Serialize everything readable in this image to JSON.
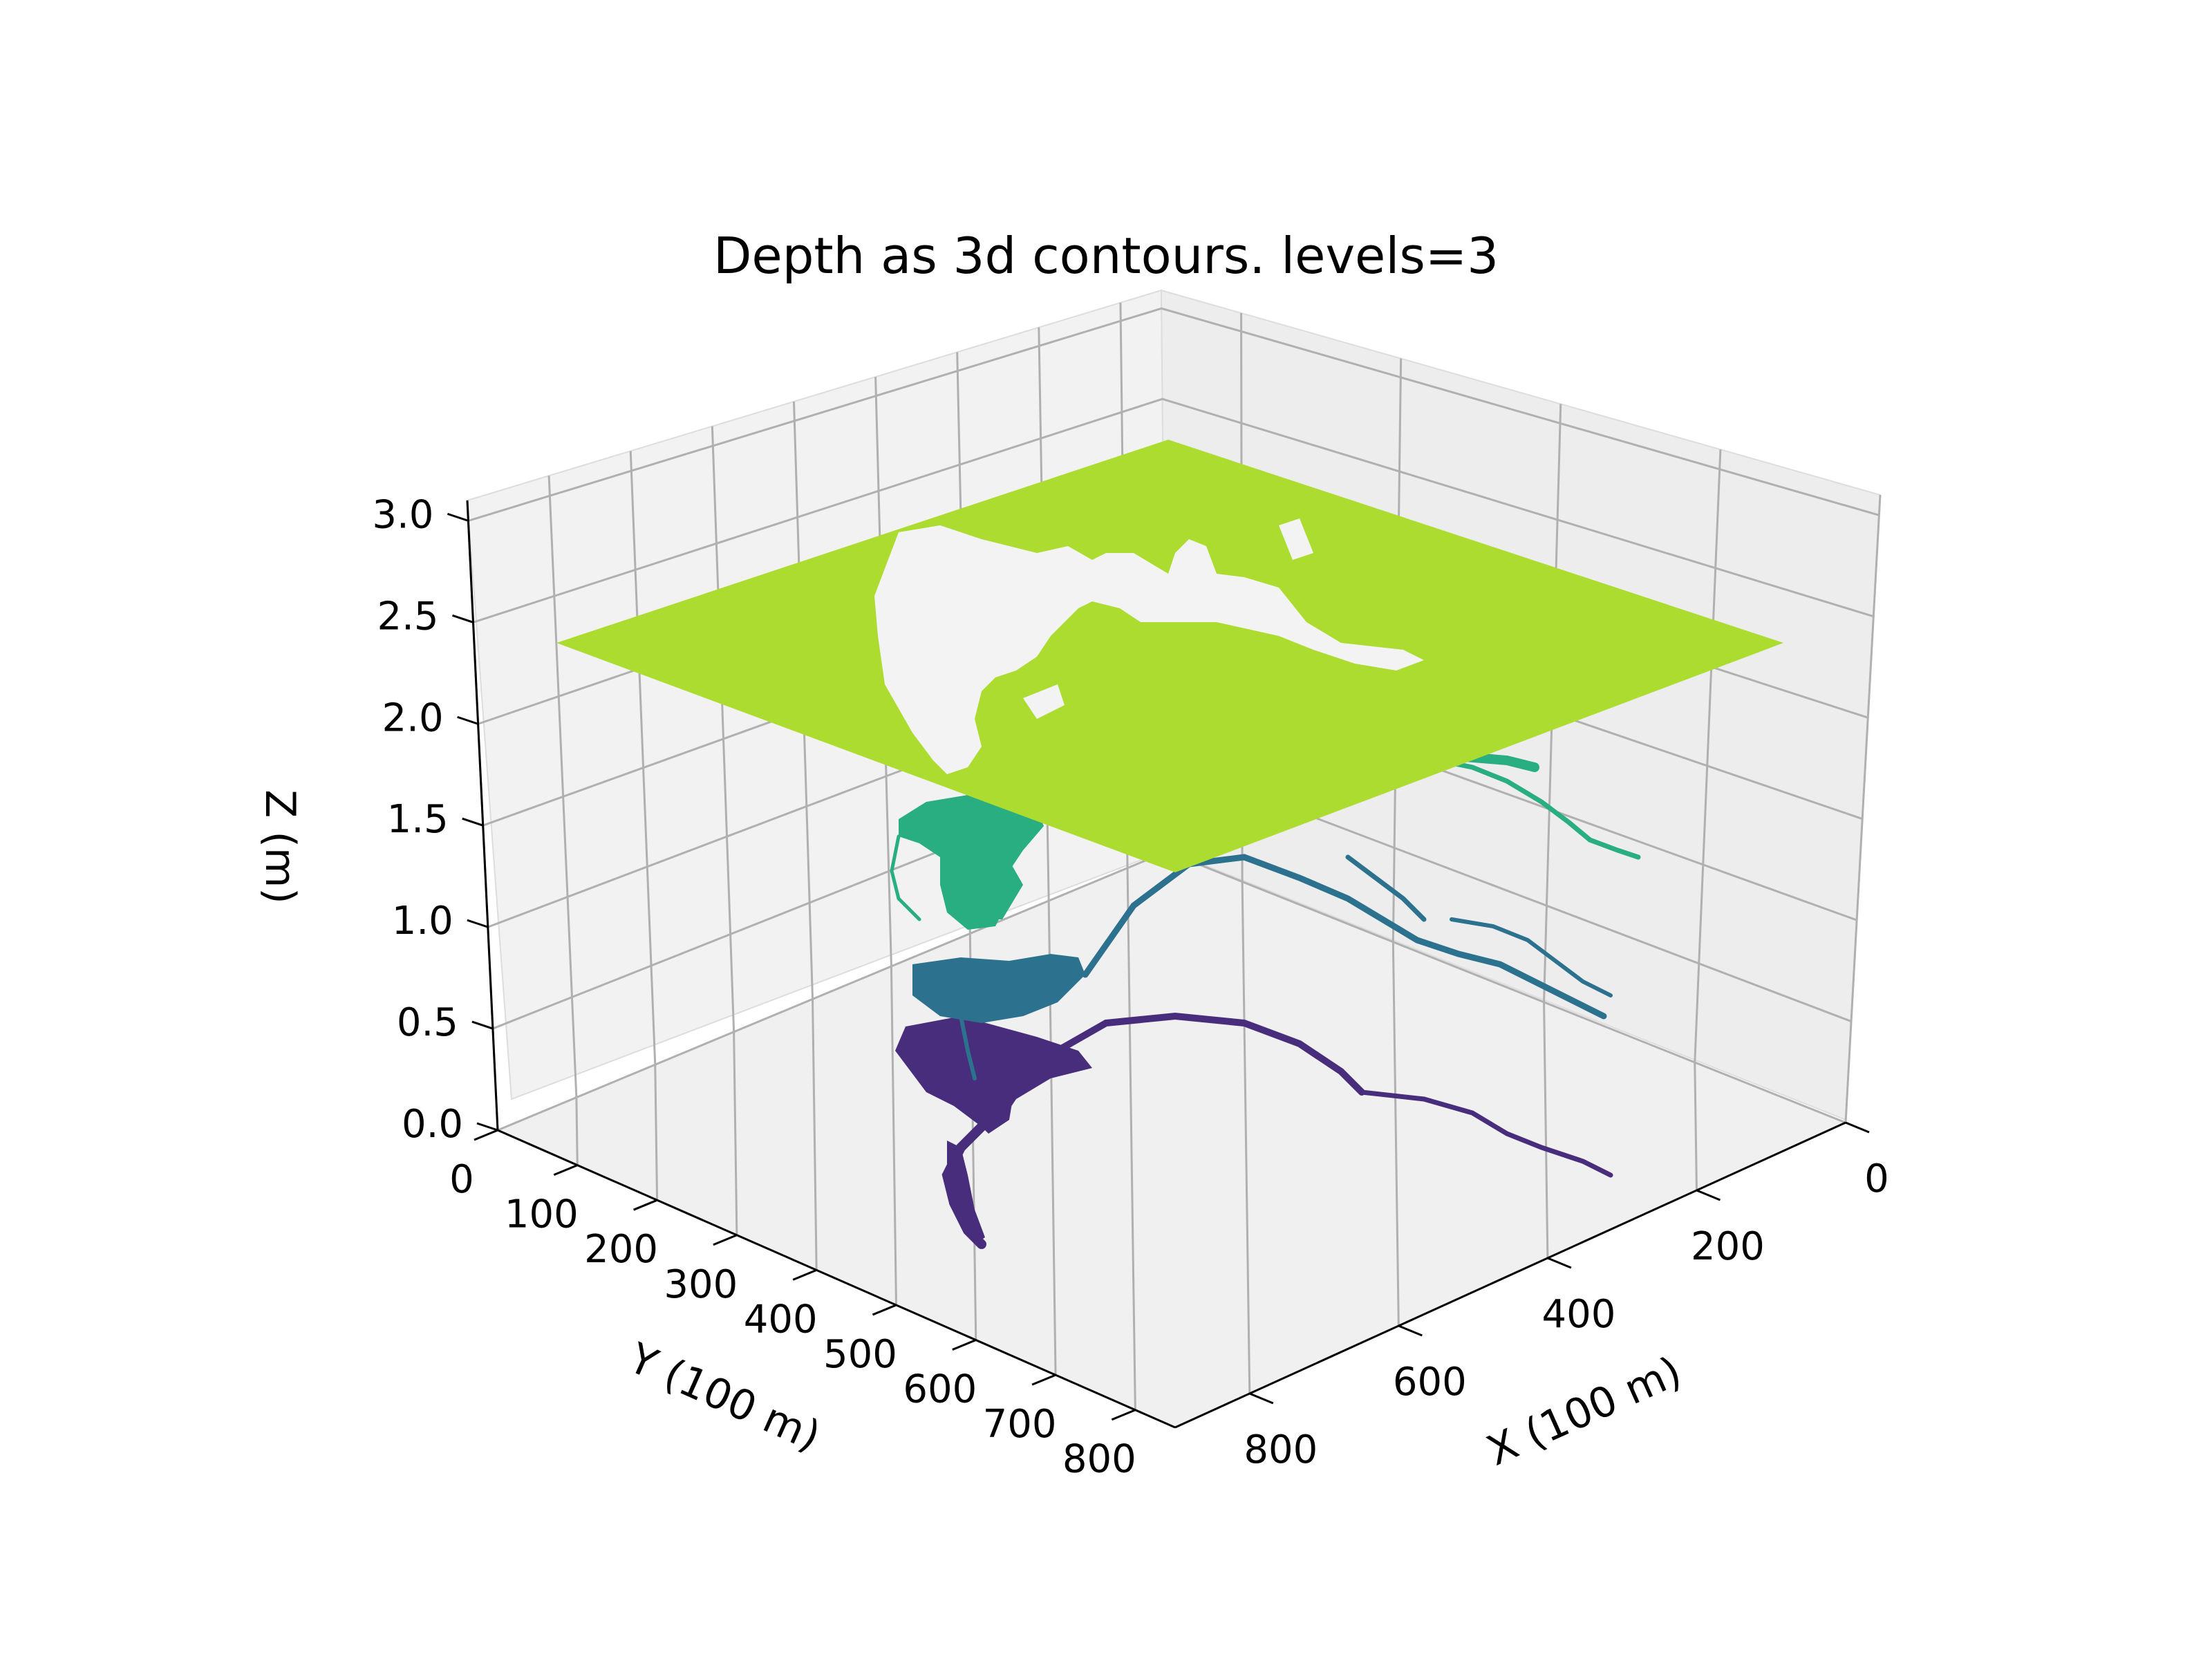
{
  "chart_data": {
    "type": "3d-contour",
    "title": "Depth as 3d contours. levels=3",
    "xlabel": "X (100 m)",
    "ylabel": "Y (100 m)",
    "zlabel": "Z (m)",
    "x_ticks": [
      "0",
      "200",
      "400",
      "600",
      "800"
    ],
    "y_ticks": [
      "0",
      "100",
      "200",
      "300",
      "400",
      "500",
      "600",
      "700",
      "800"
    ],
    "z_ticks": [
      "0.0",
      "0.5",
      "1.0",
      "1.5",
      "2.0",
      "2.5",
      "3.0"
    ],
    "xlim": [
      0,
      900
    ],
    "ylim": [
      0,
      850
    ],
    "zlim": [
      0,
      3.1
    ],
    "grid": true,
    "colormap": "viridis",
    "contour_levels": [
      {
        "z": 0.5,
        "color": "#472d7b"
      },
      {
        "z": 1.0,
        "color": "#2c728e"
      },
      {
        "z": 1.5,
        "color": "#28ae80"
      },
      {
        "z": 2.5,
        "color": "#addc30"
      }
    ]
  }
}
